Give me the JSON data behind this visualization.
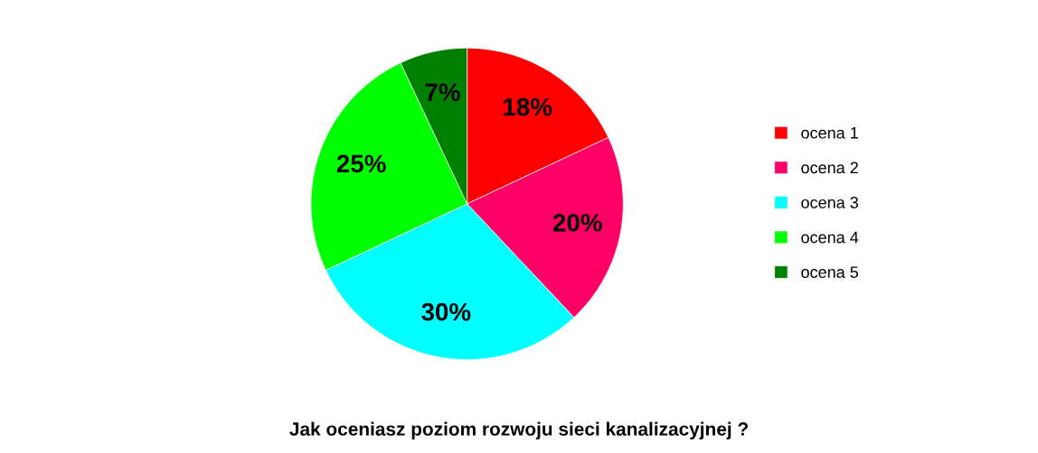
{
  "chart_data": {
    "type": "pie",
    "title": "Jak oceniasz poziom rozwoju sieci kanalizacyjnej ?",
    "categories": [
      "ocena 1",
      "ocena 2",
      "ocena 3",
      "ocena 4",
      "ocena 5"
    ],
    "values": [
      18,
      20,
      30,
      25,
      7
    ],
    "colors": [
      "#ff0000",
      "#ff0066",
      "#00ffff",
      "#00ff00",
      "#008000"
    ],
    "value_labels": [
      "18%",
      "20%",
      "30%",
      "25%",
      "7%"
    ],
    "legend": "right"
  }
}
